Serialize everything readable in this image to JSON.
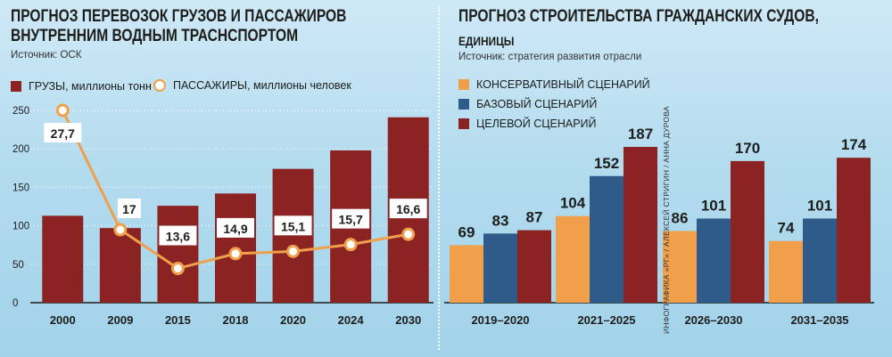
{
  "left": {
    "title_line1": "ПРОГНОЗ ПЕРЕВОЗОК ГРУЗОВ И ПАССАЖИРОВ",
    "title_line2": "ВНУТРЕННИМ ВОДНЫМ ТРАСНСПОРТОМ",
    "source": "Источник: ОСК"
  },
  "right": {
    "title": "ПРОГНОЗ СТРОИТЕЛЬСТВА ГРАЖДАНСКИХ СУДОВ,",
    "subtitle": "единицы",
    "source": "Источник: стратегия развития отрасли"
  },
  "credit": "ИНФОГРАФИКА «РГ» / АЛЕКСЕЙ СТРИГИН / АННА ДУРОВА",
  "colors": {
    "cargo": "#8b2323",
    "passengers": "#f0a04b",
    "conservative": "#f0a04b",
    "base": "#2f5b8a",
    "target": "#8b2323"
  },
  "chart_data": [
    {
      "type": "bar",
      "categories": [
        "2000",
        "2009",
        "2015",
        "2018",
        "2020",
        "2024",
        "2030"
      ],
      "series": [
        {
          "name": "ГРУЗЫ, миллионы тонн",
          "type": "bar",
          "values": [
            113,
            97,
            126,
            142,
            174,
            198,
            241
          ]
        },
        {
          "name": "ПАССАЖИРЫ, миллионы человек",
          "type": "line",
          "values": [
            27.7,
            17,
            13.6,
            14.9,
            15.1,
            15.7,
            16.6
          ],
          "labels": [
            "27,7",
            "17",
            "13,6",
            "14,9",
            "15,1",
            "15,7",
            "16,6"
          ]
        }
      ],
      "yticks": [
        "0",
        "50",
        "100",
        "150",
        "200",
        "250"
      ],
      "ylim": [
        0,
        250
      ]
    },
    {
      "type": "bar",
      "categories": [
        "2019–2020",
        "2021–2025",
        "2026–2030",
        "2031–2035"
      ],
      "series": [
        {
          "name": "КОНСЕРВАТИВНЫЙ СЦЕНАРИЙ",
          "values": [
            69,
            104,
            86,
            74
          ]
        },
        {
          "name": "БАЗОВЫЙ СЦЕНАРИЙ",
          "values": [
            83,
            152,
            101,
            101
          ]
        },
        {
          "name": "ЦЕЛЕВОЙ СЦЕНАРИЙ",
          "values": [
            87,
            187,
            170,
            174
          ]
        }
      ]
    }
  ]
}
